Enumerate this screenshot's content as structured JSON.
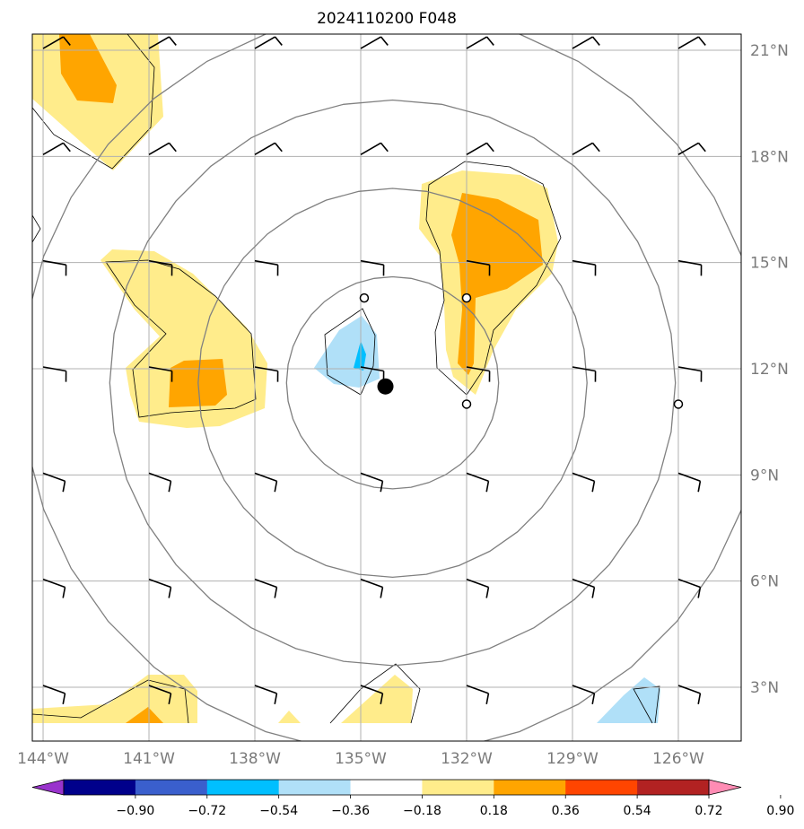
{
  "title": "2024110200 F048",
  "lat_labels": [
    "21°N",
    "18°N",
    "15°N",
    "12°N",
    "9°N",
    "6°N",
    "3°N"
  ],
  "lat_values": [
    21,
    18,
    15,
    12,
    9,
    6,
    3
  ],
  "lon_labels": [
    "144°W",
    "141°W",
    "138°W",
    "135°W",
    "132°W",
    "129°W",
    "126°W"
  ],
  "lon_values": [
    -144,
    -141,
    -138,
    -135,
    -132,
    -129,
    -126
  ],
  "colorbar": {
    "tick_labels": [
      "−0.90",
      "−0.72",
      "−0.54",
      "−0.36",
      "−0.18",
      "0.18",
      "0.36",
      "0.54",
      "0.72",
      "0.90"
    ],
    "colors": [
      "#9933cc",
      "#00008b",
      "#3a5fcd",
      "#00bfff",
      "#b0e0f8",
      "#ffffff",
      "#ffec8b",
      "#ffa500",
      "#ff4500",
      "#b22222",
      "#ff8cb4"
    ]
  },
  "map": {
    "center_marker": {
      "lon": -134.3,
      "lat": 11.5
    },
    "range_rings_deg": [
      3,
      5.5,
      8,
      10.5
    ],
    "fill_colors": {
      "pos1": "#ffec8b",
      "pos2": "#ffa500",
      "neg1": "#b0e0f8",
      "neg2": "#00bfff"
    },
    "station_circles": [
      {
        "lon": -134.9,
        "lat": 14.0
      },
      {
        "lon": -132.0,
        "lat": 14.0
      },
      {
        "lon": -132.0,
        "lat": 11.0
      },
      {
        "lon": -126.0,
        "lat": 11.0
      }
    ]
  }
}
